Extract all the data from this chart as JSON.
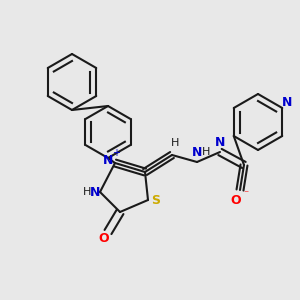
{
  "background_color": "#e8e8e8",
  "bond_color": "#1a1a1a",
  "bond_width": 1.5,
  "figsize": [
    3.0,
    3.0
  ],
  "dpi": 100,
  "xlim": [
    0,
    300
  ],
  "ylim": [
    0,
    300
  ]
}
